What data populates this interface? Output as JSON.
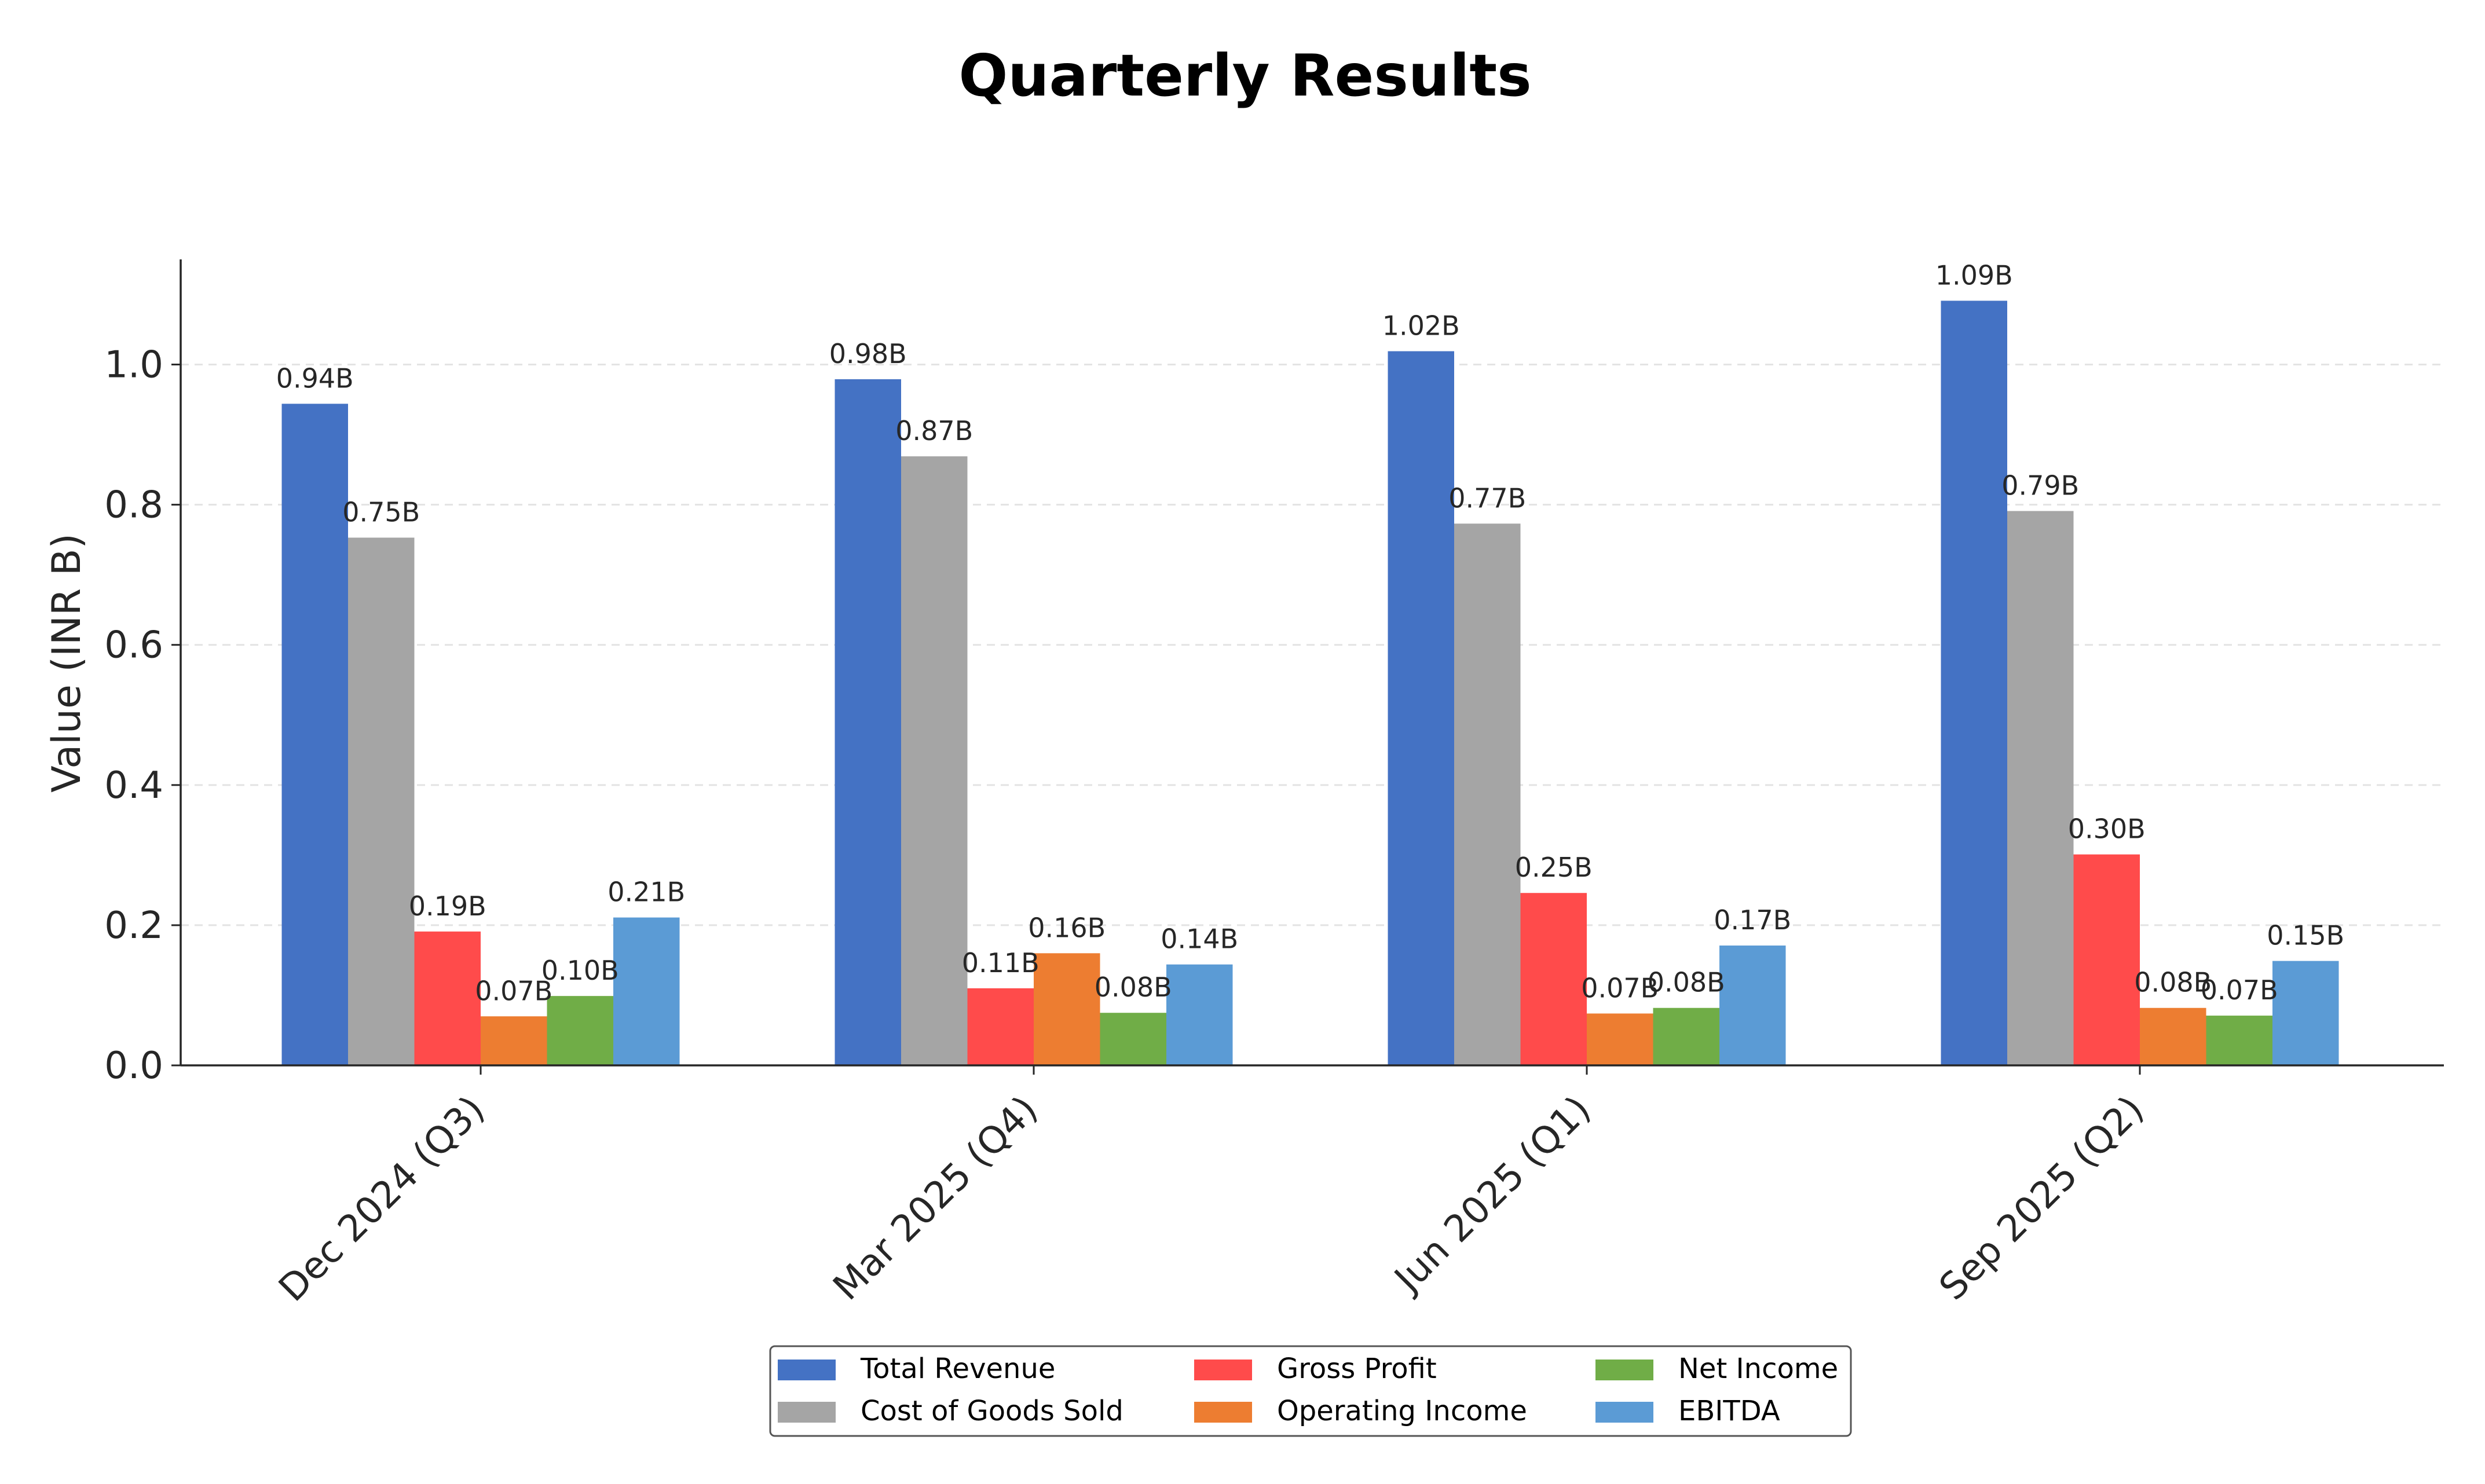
{
  "chart_data": {
    "type": "bar",
    "title": "Quarterly Results",
    "ylabel": "Value (INR B)",
    "xlabel": "",
    "ylim": [
      0,
      1.15
    ],
    "yticks": [
      "0.0",
      "0.2",
      "0.4",
      "0.6",
      "0.8",
      "1.0"
    ],
    "grid": "y-dashed",
    "legend_position": "bottom-center",
    "categories": [
      "Dec 2024 (Q3)",
      "Mar 2025 (Q4)",
      "Jun 2025 (Q1)",
      "Sep 2025 (Q2)"
    ],
    "series": [
      {
        "name": "Total Revenue",
        "color": "#4472c4",
        "values": [
          0.944,
          0.979,
          1.019,
          1.091
        ],
        "labels": [
          "0.94B",
          "0.98B",
          "1.02B",
          "1.09B"
        ]
      },
      {
        "name": "Cost of Goods Sold",
        "color": "#a5a5a5",
        "values": [
          0.753,
          0.869,
          0.773,
          0.791
        ],
        "labels": [
          "0.75B",
          "0.87B",
          "0.77B",
          "0.79B"
        ]
      },
      {
        "name": "Gross Profit",
        "color": "#ff4b4b",
        "values": [
          0.191,
          0.11,
          0.246,
          0.301
        ],
        "labels": [
          "0.19B",
          "0.11B",
          "0.25B",
          "0.30B"
        ]
      },
      {
        "name": "Operating Income",
        "color": "#ed7d31",
        "values": [
          0.07,
          0.16,
          0.074,
          0.082
        ],
        "labels": [
          "0.07B",
          "0.16B",
          "0.07B",
          "0.08B"
        ]
      },
      {
        "name": "Net Income",
        "color": "#70ad47",
        "values": [
          0.099,
          0.075,
          0.082,
          0.071
        ],
        "labels": [
          "0.10B",
          "0.08B",
          "0.08B",
          "0.07B"
        ]
      },
      {
        "name": "EBITDA",
        "color": "#5b9bd5",
        "values": [
          0.211,
          0.144,
          0.171,
          0.149
        ],
        "labels": [
          "0.21B",
          "0.14B",
          "0.17B",
          "0.15B"
        ]
      }
    ]
  }
}
